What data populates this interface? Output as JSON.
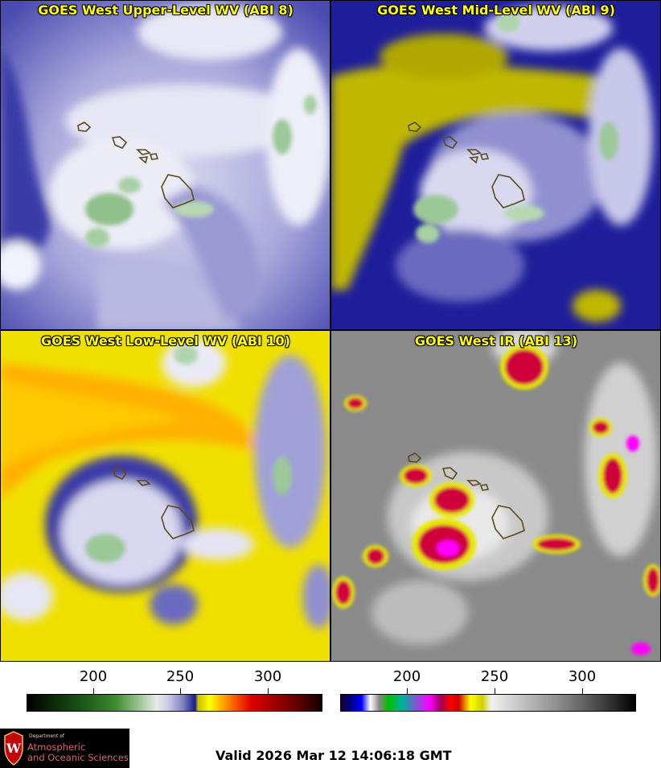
{
  "panels": [
    {
      "title": "GOES West Upper-Level WV (ABI 8)"
    },
    {
      "title": "GOES West Mid-Level WV (ABI 9)"
    },
    {
      "title": "GOES West Low-Level WV (ABI 10)"
    },
    {
      "title": "GOES West IR (ABI 13)"
    }
  ],
  "colorbars": {
    "left": {
      "ticks": [
        "200",
        "250",
        "300"
      ]
    },
    "right": {
      "ticks": [
        "200",
        "250",
        "300"
      ]
    }
  },
  "logo": {
    "dept": "Department of",
    "line1": "Atmospheric",
    "line2": "and Oceanic Sciences",
    "crest_letter": "W"
  },
  "footer": {
    "valid": "Valid 2026 Mar 12 14:06:18 GMT"
  },
  "colors": {
    "title_text": "#ffff00",
    "coastline": "#5a4a1a",
    "upper_wv_base": "#8e8ed0",
    "mid_wv_base": "#c8c000",
    "low_wv_base": "#f0d800",
    "ir_base": "#8a8a8a",
    "ir_cold_core": "#e0003a",
    "ir_coldest": "#ff00ff"
  }
}
